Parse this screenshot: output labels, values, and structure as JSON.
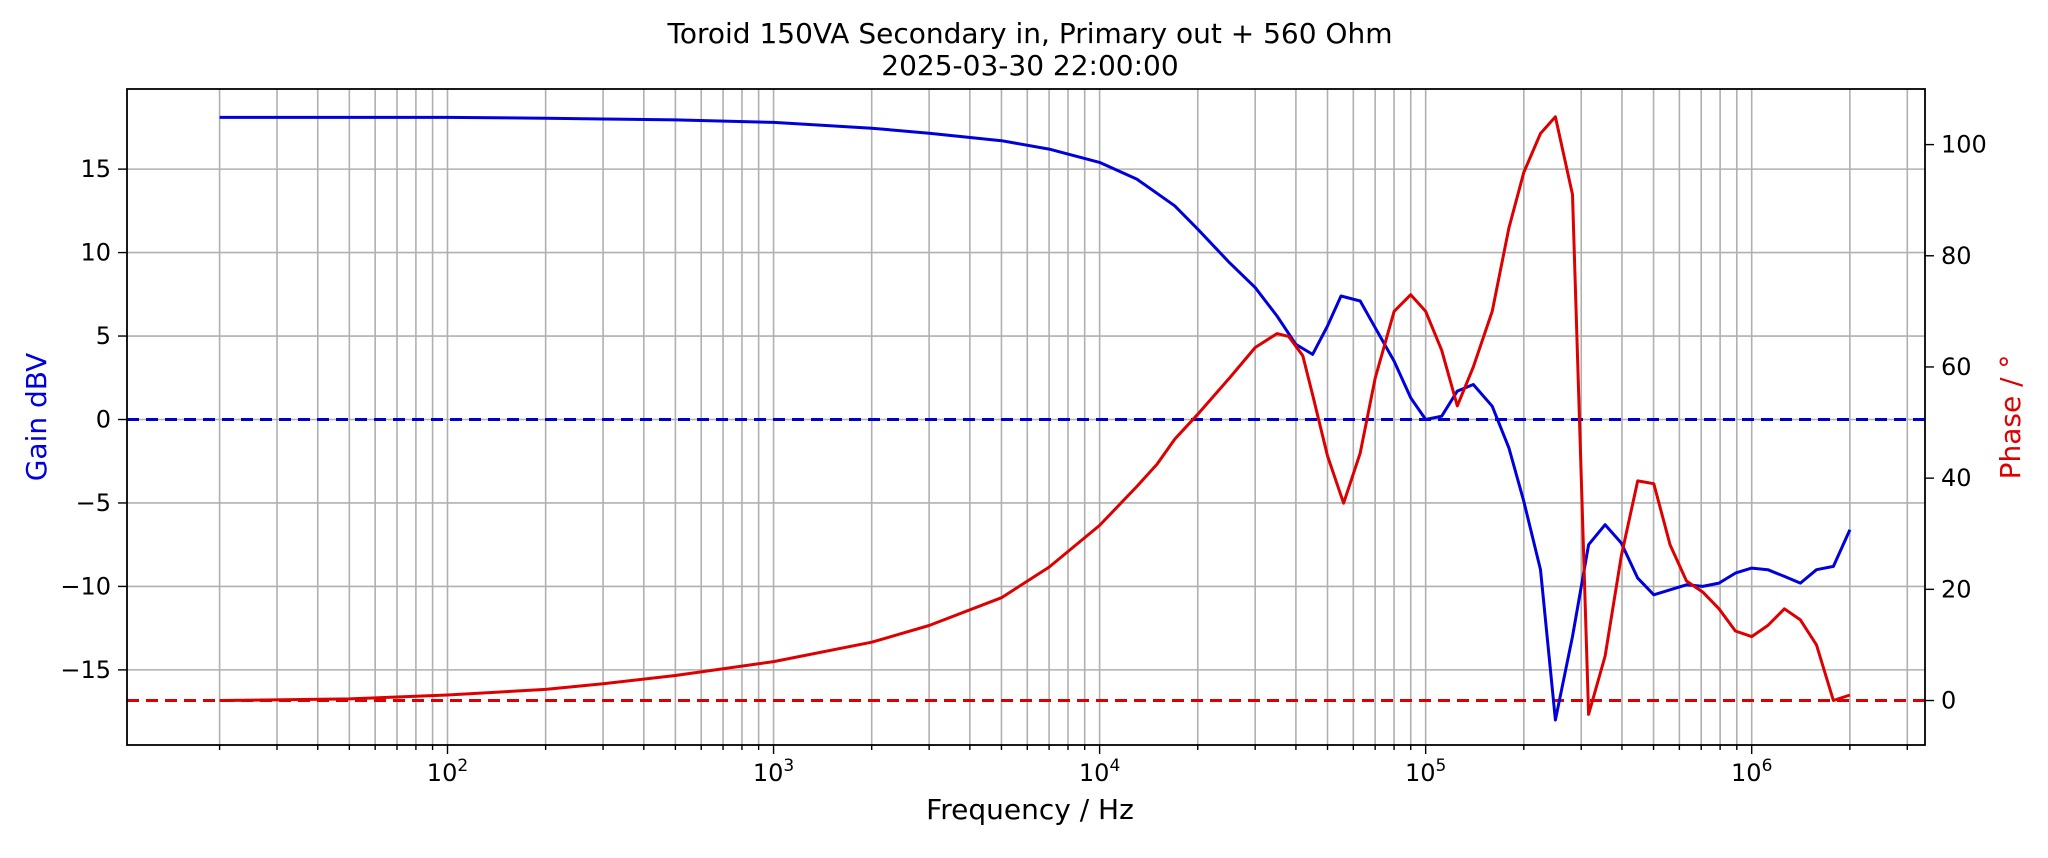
{
  "chart_data": {
    "type": "line",
    "title": "Toroid 150VA Secondary in, Primary out + 560 Ohm",
    "subtitle": "2025-03-30 22:00:00",
    "xlabel": "Frequency / Hz",
    "ylabel_left": "Gain dBV",
    "ylabel_right": "Phase / °",
    "x_scale": "log",
    "xlim": [
      10.4,
      3400000
    ],
    "ylim_left": [
      -19.5,
      19.8
    ],
    "ylim_right": [
      -8,
      110
    ],
    "grid": true,
    "x_ticks": [
      {
        "value": 100,
        "base": "10",
        "exp": "2"
      },
      {
        "value": 1000,
        "base": "10",
        "exp": "3"
      },
      {
        "value": 10000,
        "base": "10",
        "exp": "4"
      },
      {
        "value": 100000,
        "base": "10",
        "exp": "5"
      },
      {
        "value": 1000000,
        "base": "10",
        "exp": "6"
      }
    ],
    "y_ticks_left": [
      15,
      10,
      5,
      0,
      -5,
      -10,
      -15
    ],
    "y_ticks_left_labels": [
      "15",
      "10",
      "5",
      "0",
      "−5",
      "−10",
      "−15"
    ],
    "y_ticks_right": [
      100,
      80,
      60,
      40,
      20,
      0
    ],
    "y_ticks_right_labels": [
      "100",
      "80",
      "60",
      "40",
      "20",
      "0"
    ],
    "reference_lines": [
      {
        "axis": "left",
        "y": 0,
        "color": "#0000cc",
        "style": "dashed"
      },
      {
        "axis": "right",
        "y": 0,
        "color": "#dd0000",
        "style": "dashed"
      }
    ],
    "series": [
      {
        "axis": "left",
        "color": "#0000dd",
        "x": [
          20,
          30,
          50,
          100,
          200,
          300,
          500,
          1000,
          2000,
          3000,
          5000,
          7000,
          10000,
          13000,
          17000,
          20000,
          25000,
          30000,
          35000,
          40000,
          45000,
          50000,
          55000,
          63000,
          70000,
          80000,
          90000,
          100000,
          112000,
          125000,
          140000,
          160000,
          180000,
          200000,
          225000,
          250000,
          282000,
          316000,
          355000,
          398000,
          447000,
          501000,
          562000,
          631000,
          708000,
          794000,
          891000,
          1000000,
          1120000,
          1260000,
          1410000,
          1580000,
          1780000,
          2000000
        ],
        "y": [
          18.1,
          18.1,
          18.1,
          18.1,
          18.05,
          18.0,
          17.95,
          17.8,
          17.45,
          17.15,
          16.7,
          16.2,
          15.4,
          14.4,
          12.8,
          11.4,
          9.4,
          7.9,
          6.2,
          4.5,
          3.9,
          5.6,
          7.4,
          7.1,
          5.5,
          3.5,
          1.3,
          0.0,
          0.2,
          1.7,
          2.1,
          0.8,
          -1.7,
          -4.9,
          -9.0,
          -18.0,
          -13.0,
          -7.5,
          -6.3,
          -7.4,
          -9.5,
          -10.5,
          -10.2,
          -9.9,
          -10.0,
          -9.8,
          -9.2,
          -8.9,
          -9.0,
          -9.4,
          -9.8,
          -9.0,
          -8.8,
          -6.6
        ],
        "x_values_note": ""
      },
      {
        "axis": "right",
        "color": "#dd0000",
        "x": [
          20,
          50,
          100,
          200,
          300,
          500,
          1000,
          2000,
          3000,
          5000,
          7000,
          10000,
          13000,
          15000,
          17000,
          20000,
          25000,
          30000,
          35000,
          38000,
          42000,
          45000,
          50000,
          56000,
          63000,
          70000,
          80000,
          90000,
          100000,
          112000,
          125000,
          140000,
          160000,
          180000,
          200000,
          225000,
          250000,
          282000,
          316000,
          355000,
          398000,
          447000,
          501000,
          562000,
          631000,
          708000,
          794000,
          891000,
          1000000,
          1120000,
          1260000,
          1410000,
          1580000,
          1780000,
          2000000
        ],
        "y": [
          0,
          0.3,
          1.0,
          2.0,
          3.0,
          4.5,
          7.0,
          10.5,
          13.5,
          18.5,
          24.0,
          31.5,
          38.5,
          42.5,
          47.0,
          51.5,
          58.0,
          63.5,
          66.0,
          65.5,
          62.0,
          55.0,
          44.0,
          35.5,
          44.5,
          58.0,
          70.0,
          73.0,
          70.0,
          63.0,
          53.0,
          60.0,
          70.0,
          85.0,
          95.0,
          102.0,
          105.0,
          91.0,
          -2.5,
          8.0,
          26.0,
          39.5,
          39.0,
          28.0,
          21.5,
          19.5,
          16.5,
          12.5,
          11.5,
          13.5,
          16.5,
          14.5,
          10.0,
          0.0,
          1.0
        ]
      }
    ]
  }
}
